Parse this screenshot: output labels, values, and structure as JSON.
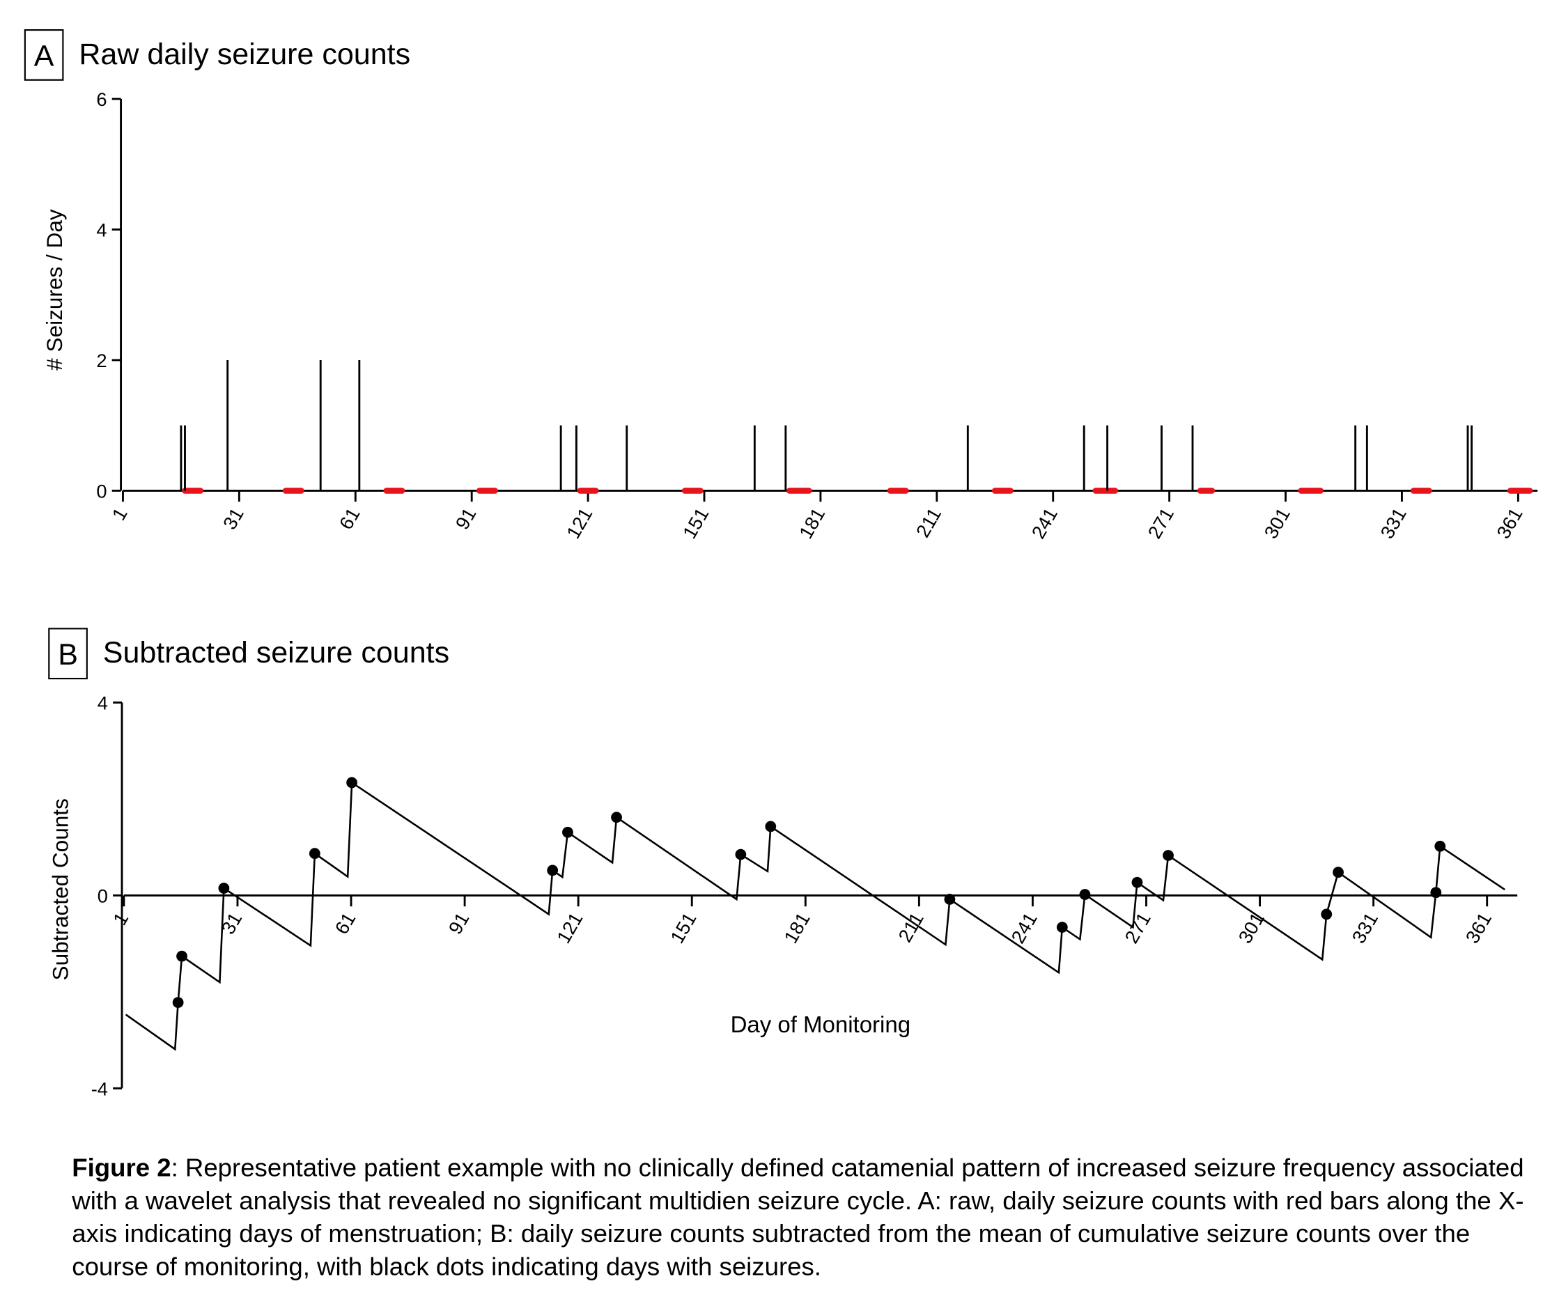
{
  "chart_data": [
    {
      "type": "stem",
      "panel_label": "A",
      "title": "Raw daily seizure counts",
      "ylabel": "# Seizures / Day",
      "x": [
        16,
        17,
        28,
        52,
        62,
        114,
        118,
        131,
        164,
        172,
        219,
        249,
        255,
        269,
        277,
        319,
        322,
        348,
        349
      ],
      "values": [
        1,
        1,
        2,
        2,
        2,
        1,
        1,
        1,
        1,
        1,
        1,
        1,
        1,
        1,
        1,
        1,
        1,
        1,
        1
      ],
      "color": "#000000",
      "menses": [
        [
          17,
          21
        ],
        [
          43,
          47
        ],
        [
          69,
          73
        ],
        [
          93,
          97
        ],
        [
          119,
          123
        ],
        [
          146,
          150
        ],
        [
          173,
          178
        ],
        [
          199,
          203
        ],
        [
          226,
          230
        ],
        [
          252,
          257
        ],
        [
          279,
          282
        ],
        [
          305,
          310
        ],
        [
          334,
          338
        ],
        [
          359,
          364
        ]
      ],
      "menses_color": "#e8141b",
      "xlim": [
        1,
        366
      ],
      "xticks": [
        1,
        31,
        61,
        91,
        121,
        151,
        181,
        211,
        241,
        271,
        301,
        331,
        361
      ],
      "ylim": [
        0,
        6
      ],
      "yticks": [
        0,
        2,
        4,
        6
      ]
    },
    {
      "type": "line",
      "panel_label": "B",
      "title": "Subtracted seizure counts",
      "ylabel": "Subtracted Counts",
      "xlabel": "Day of Monitoring",
      "series": [
        {
          "color": "#000000",
          "marker": false,
          "x": [
            1.5,
            14.5,
            15.3,
            16.3,
            26.3,
            27.4,
            50.3,
            51.4,
            60.1,
            61.2,
            113.2,
            114.2,
            116.8,
            118.2,
            130,
            131.1,
            162.8,
            163.9,
            171,
            171.8,
            218,
            219.1,
            247.9,
            248.8,
            253.5,
            254.8,
            267.5,
            268.6,
            275.5,
            276.8,
            317.5,
            318.6,
            321.7,
            346.2,
            347.5,
            348.6,
            365.7
          ],
          "values": [
            -2.47,
            -3.19,
            -2.22,
            -1.26,
            -1.8,
            0.15,
            -1.04,
            0.87,
            0.39,
            2.34,
            -0.39,
            0.52,
            0.38,
            1.31,
            0.68,
            1.62,
            -0.08,
            0.85,
            0.5,
            1.43,
            -1.02,
            -0.08,
            -1.6,
            -0.66,
            -0.91,
            0.02,
            -0.66,
            0.27,
            -0.1,
            0.83,
            -1.33,
            -0.39,
            0.48,
            -0.87,
            0.06,
            1.02,
            0.12
          ]
        },
        {
          "color": "#000000",
          "marker": true,
          "x": [
            15.3,
            16.3,
            27.4,
            51.4,
            61.2,
            114.2,
            118.2,
            131.1,
            163.9,
            171.8,
            219.1,
            248.8,
            254.8,
            268.6,
            276.8,
            318.6,
            321.7,
            347.5,
            348.6
          ],
          "values": [
            -2.22,
            -1.26,
            0.15,
            0.87,
            2.34,
            0.52,
            1.31,
            1.62,
            0.85,
            1.43,
            -0.08,
            -0.66,
            0.02,
            0.27,
            0.83,
            -0.39,
            0.48,
            0.06,
            1.02
          ]
        }
      ],
      "xlim": [
        1,
        369
      ],
      "xticks": [
        1,
        31,
        61,
        91,
        121,
        151,
        181,
        211,
        241,
        271,
        301,
        331,
        361
      ],
      "ylim": [
        -4,
        4
      ],
      "yticks": [
        -4,
        0,
        4
      ]
    }
  ],
  "caption": {
    "label": "Figure 2",
    "text": ": Representative patient example with no clinically defined catamenial pattern of increased seizure frequency associated with a wavelet analysis that revealed no significant multidien seizure cycle. A: raw, daily seizure counts with red bars along the X-axis indicating days of menstruation; B: daily seizure counts subtracted from the mean of cumulative seizure counts over the course of monitoring, with black dots indicating days with seizures."
  }
}
